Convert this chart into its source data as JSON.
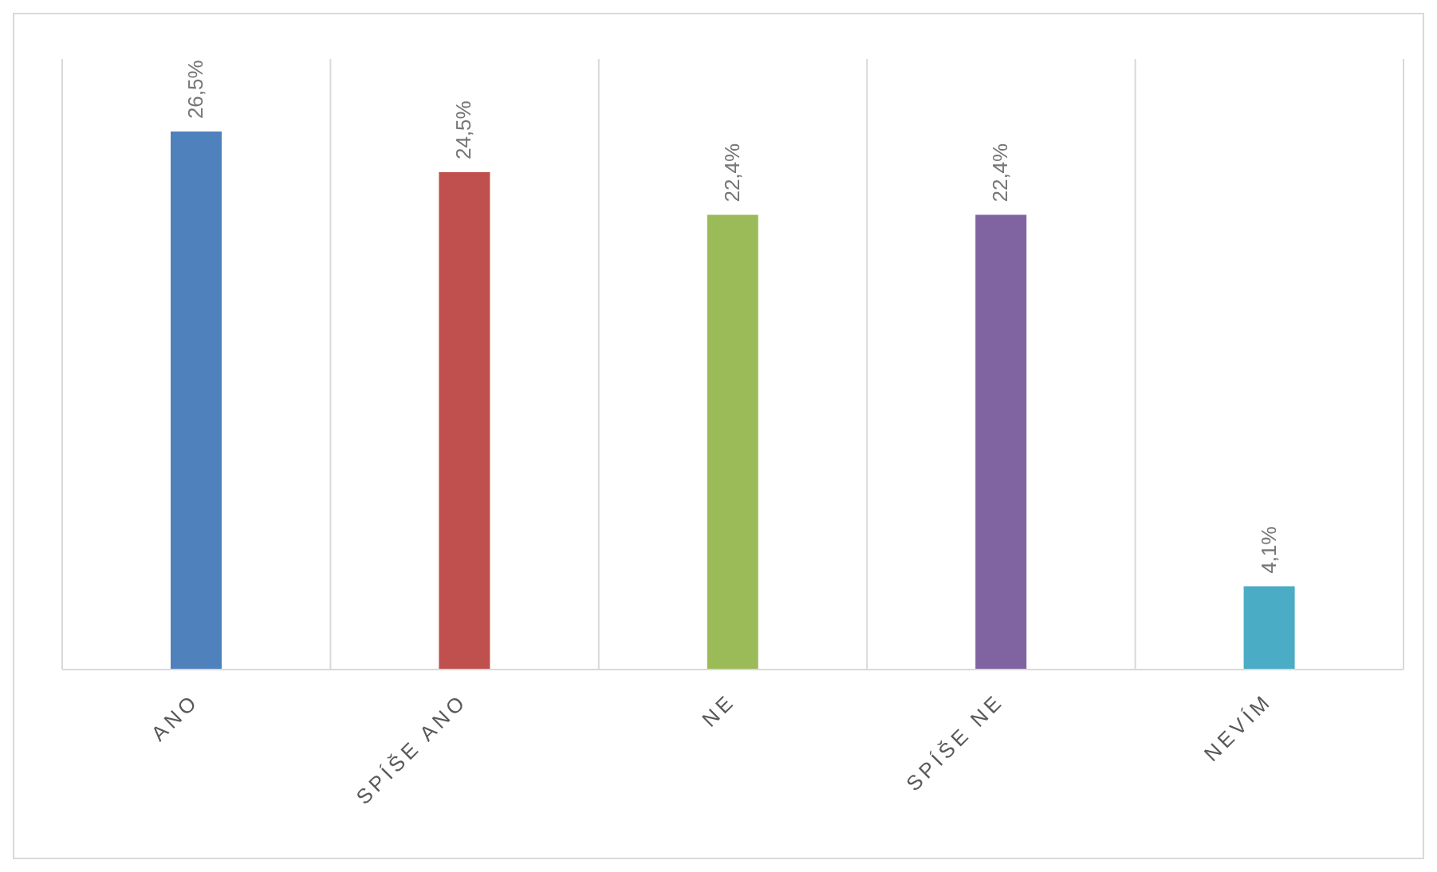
{
  "chart_data": {
    "type": "bar",
    "categories": [
      "ANO",
      "SPÍŠE ANO",
      "NE",
      "SPÍŠE NE",
      "NEVÍM"
    ],
    "values": [
      26.5,
      24.5,
      22.4,
      22.4,
      4.1
    ],
    "colors": [
      "#4f81bd",
      "#c0504d",
      "#9bbb59",
      "#8064a2",
      "#4bacc6"
    ],
    "value_labels": [
      "26,5%",
      "24,5%",
      "22,4%",
      "22,4%",
      "4,1%"
    ],
    "grid": "x"
  }
}
